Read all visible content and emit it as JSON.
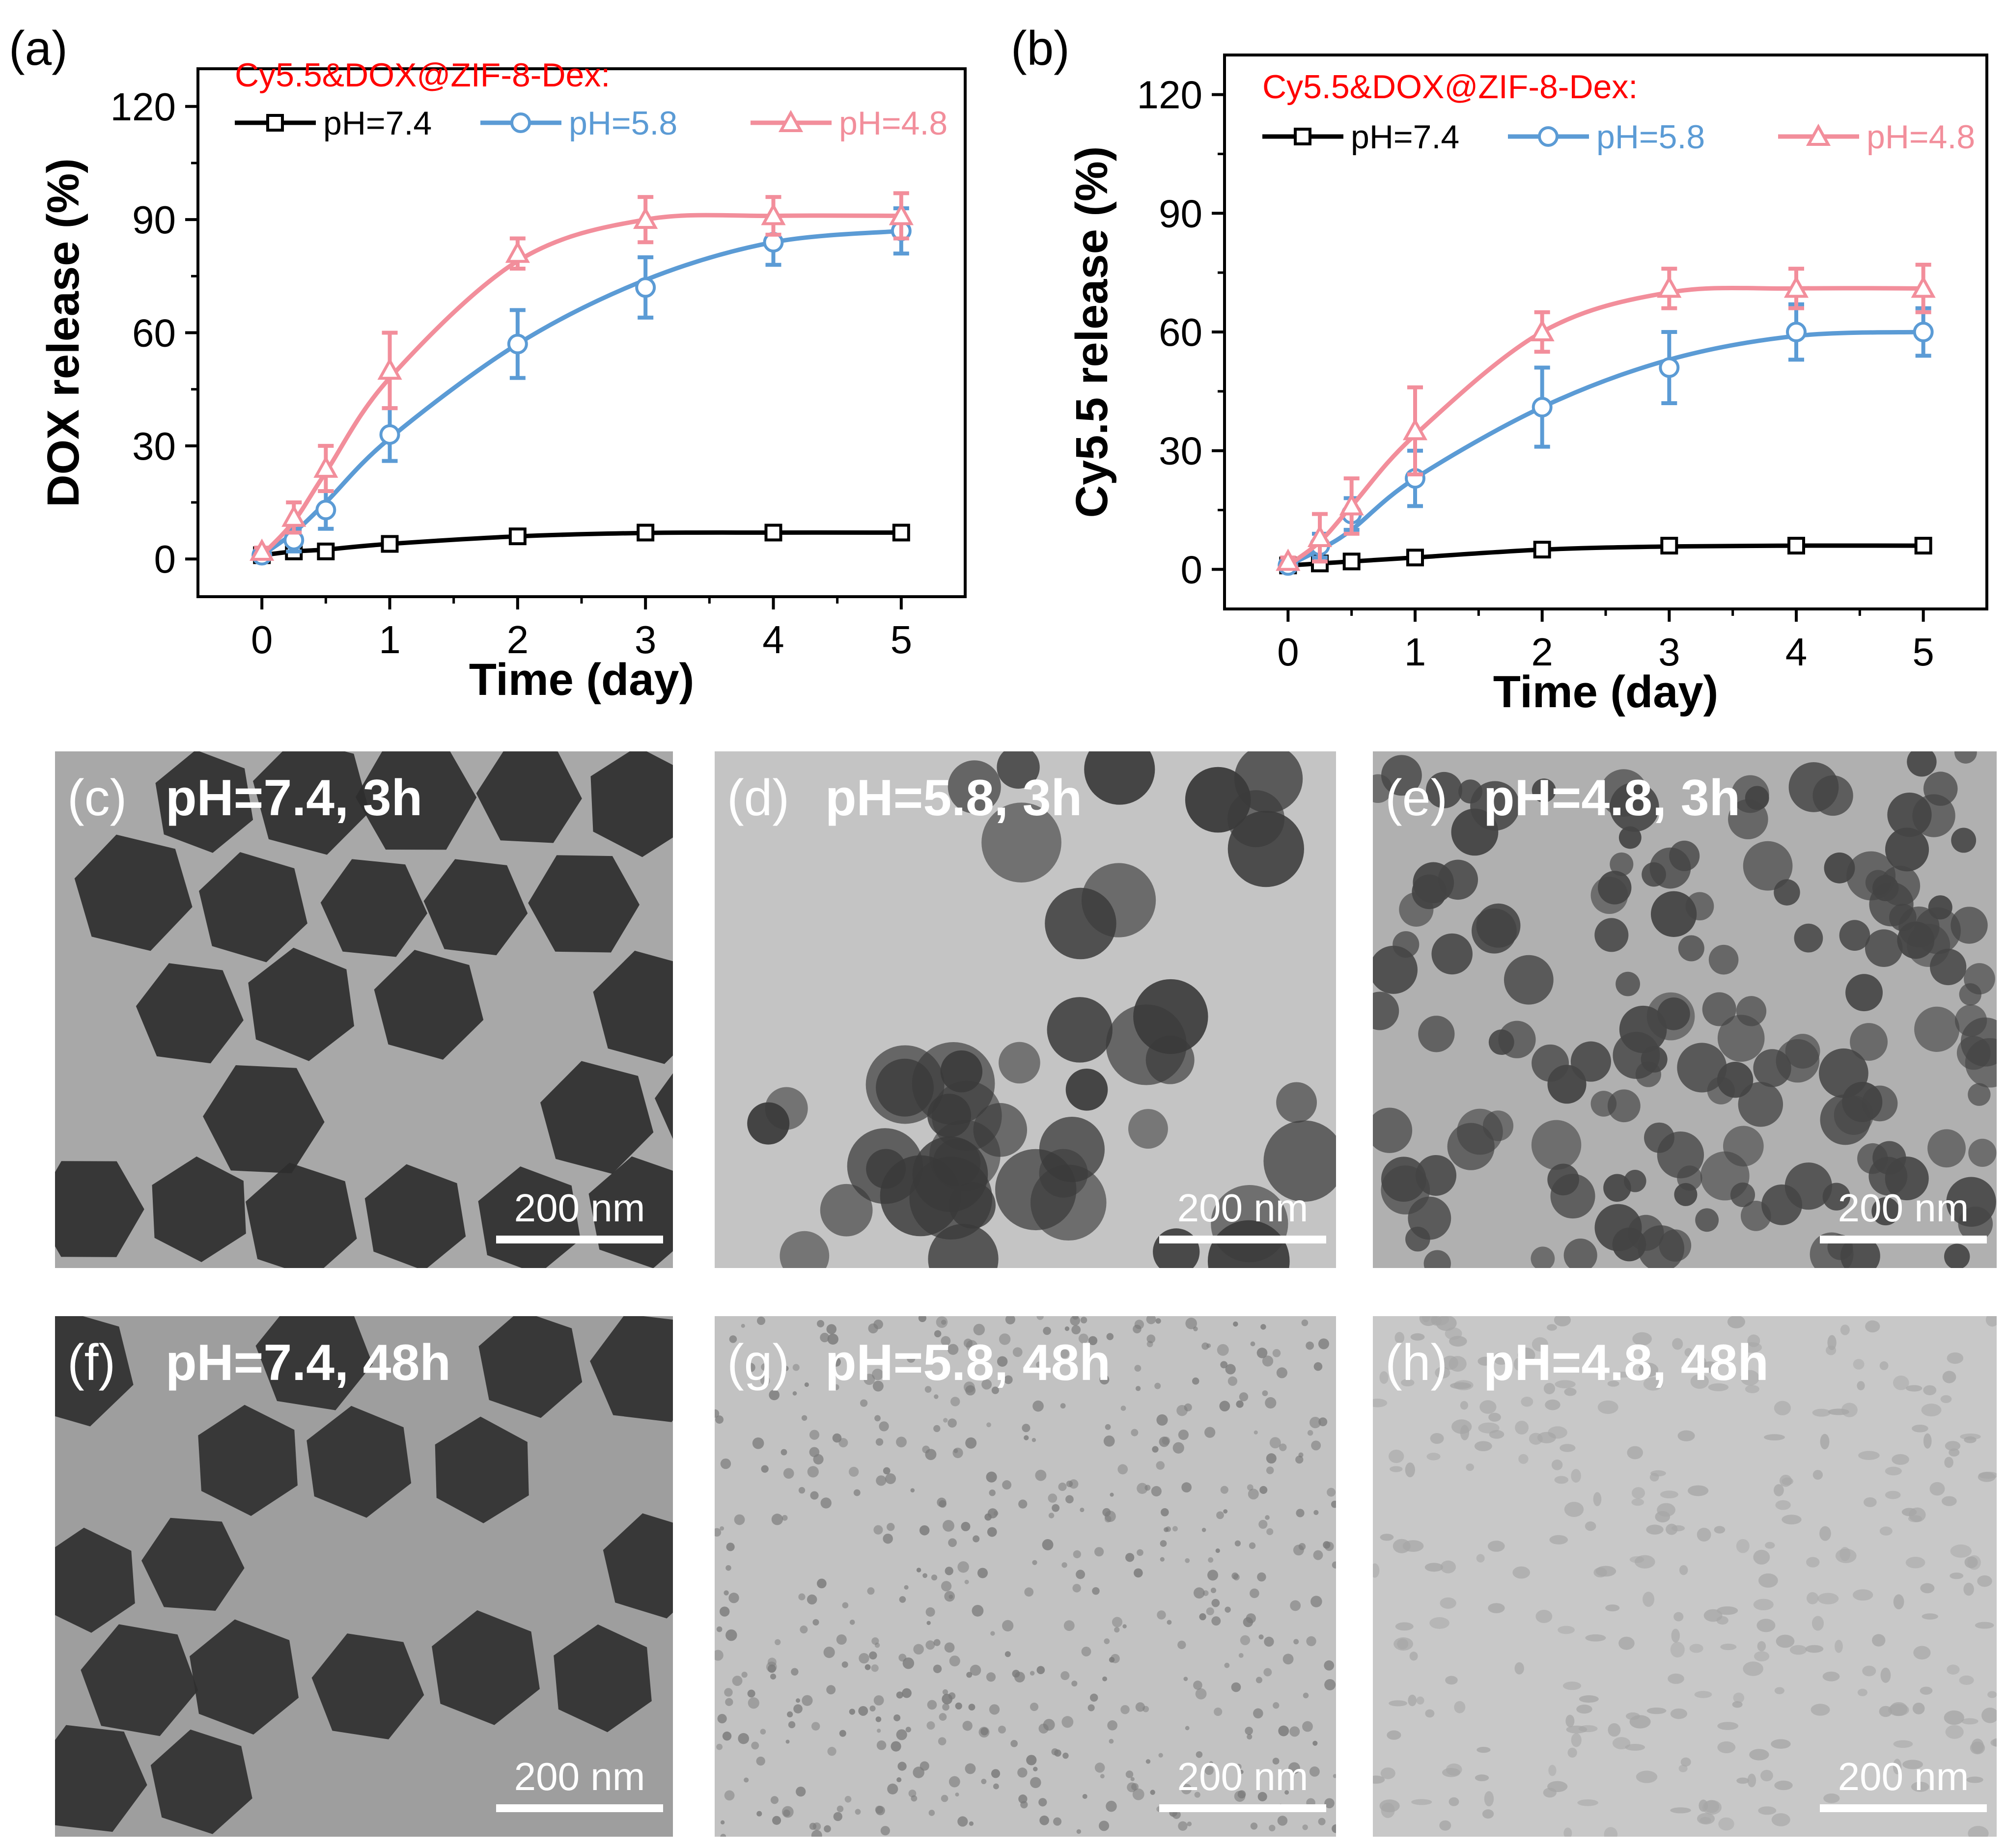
{
  "colors": {
    "ph74": "#000000",
    "ph58": "#5b9bd5",
    "ph48": "#f28e9b",
    "legend_title": "#ff0000",
    "text": "#000000",
    "label_white": "#ffffff"
  },
  "chart_data": [
    {
      "panel": "(a)",
      "type": "line",
      "legend_title": "Cy5.5&DOX@ZIF-8-Dex:",
      "xlabel": "Time (day)",
      "ylabel": "DOX release (%)",
      "xlim": [
        -0.5,
        5.5
      ],
      "ylim": [
        -10,
        130
      ],
      "xticks": [
        0,
        1,
        2,
        3,
        4,
        5
      ],
      "yticks": [
        0,
        30,
        60,
        90,
        120
      ],
      "legend_position": "top",
      "grid": false,
      "x": [
        0,
        0.25,
        0.5,
        1,
        2,
        3,
        4,
        5
      ],
      "series": [
        {
          "name": "pH=7.4",
          "marker": "square",
          "color": "#000000",
          "values": [
            1,
            2,
            2,
            4,
            6,
            7,
            7,
            7
          ],
          "errors": [
            1,
            1,
            1,
            1,
            1,
            1,
            1,
            1
          ],
          "fit": [
            1,
            2,
            2.5,
            4,
            6,
            6.9,
            7,
            7
          ]
        },
        {
          "name": "pH=5.8",
          "marker": "circle",
          "color": "#5b9bd5",
          "values": [
            1,
            5,
            13,
            33,
            57,
            72,
            84,
            87
          ],
          "errors": [
            1,
            3,
            5,
            7,
            9,
            8,
            6,
            6
          ],
          "fit": [
            1,
            7,
            15,
            32,
            57,
            74,
            84,
            87
          ]
        },
        {
          "name": "pH=4.8",
          "marker": "triangle",
          "color": "#f28e9b",
          "values": [
            2,
            11,
            24,
            50,
            81,
            90,
            91,
            91
          ],
          "errors": [
            1,
            4,
            6,
            10,
            4,
            6,
            5,
            6
          ],
          "fit": [
            1,
            10,
            23,
            48,
            79,
            90,
            91,
            91
          ]
        }
      ]
    },
    {
      "panel": "(b)",
      "type": "line",
      "legend_title": "Cy5.5&DOX@ZIF-8-Dex:",
      "xlabel": "Time (day)",
      "ylabel": "Cy5.5 release (%)",
      "xlim": [
        -0.5,
        5.5
      ],
      "ylim": [
        -10,
        130
      ],
      "xticks": [
        0,
        1,
        2,
        3,
        4,
        5
      ],
      "yticks": [
        0,
        30,
        60,
        90,
        120
      ],
      "legend_position": "top",
      "grid": false,
      "x": [
        0,
        0.25,
        0.5,
        1,
        2,
        3,
        4,
        5
      ],
      "series": [
        {
          "name": "pH=7.4",
          "marker": "square",
          "color": "#000000",
          "values": [
            1,
            1.5,
            2,
            3,
            5,
            6,
            6,
            6
          ],
          "errors": [
            1,
            1,
            1,
            1,
            1,
            1,
            1,
            1
          ],
          "fit": [
            1,
            1.5,
            2,
            3,
            5,
            5.8,
            6,
            6
          ]
        },
        {
          "name": "pH=5.8",
          "marker": "circle",
          "color": "#5b9bd5",
          "values": [
            1,
            6,
            14,
            23,
            41,
            51,
            60,
            60
          ],
          "errors": [
            1,
            3,
            4,
            7,
            10,
            9,
            7,
            6
          ],
          "fit": [
            1,
            5,
            10,
            23,
            41,
            53,
            59,
            60
          ]
        },
        {
          "name": "pH=4.8",
          "marker": "triangle",
          "color": "#f28e9b",
          "values": [
            2,
            8,
            16,
            35,
            60,
            71,
            71,
            71
          ],
          "errors": [
            1,
            6,
            7,
            11,
            5,
            5,
            5,
            6
          ],
          "fit": [
            1,
            7,
            16,
            34,
            60,
            70,
            71,
            71
          ]
        }
      ]
    }
  ],
  "tem_panels": [
    {
      "letter": "(c)",
      "condition": "pH=7.4, 3h",
      "scale_label": "200 nm",
      "background": "#a8a8a8",
      "particle_color": "#2e2e2e",
      "particles": "large-hexagons"
    },
    {
      "letter": "(d)",
      "condition": "pH=5.8, 3h",
      "scale_label": "200 nm",
      "background": "#c4c4c4",
      "particle_color": "#3a3a3a",
      "particles": "aggregated-rounded"
    },
    {
      "letter": "(e)",
      "condition": "pH=4.8, 3h",
      "scale_label": "200 nm",
      "background": "#b0b0b0",
      "particle_color": "#444444",
      "particles": "small-rounded"
    },
    {
      "letter": "(f)",
      "condition": "pH=7.4, 48h",
      "scale_label": "200 nm",
      "background": "#9e9e9e",
      "particle_color": "#303030",
      "particles": "large-hexagons"
    },
    {
      "letter": "(g)",
      "condition": "pH=5.8, 48h",
      "scale_label": "200 nm",
      "background": "#c2c2c2",
      "particle_color": "#7a7a7a",
      "particles": "fine-dots"
    },
    {
      "letter": "(h)",
      "condition": "pH=4.8, 48h",
      "scale_label": "200 nm",
      "background": "#c8c8c8",
      "particle_color": "#a6a6a6",
      "particles": "faint-patches"
    }
  ]
}
